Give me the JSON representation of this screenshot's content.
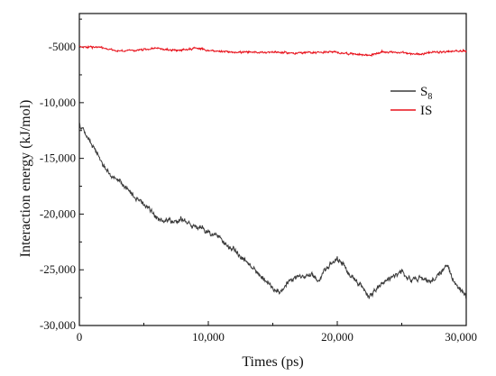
{
  "chart_data": {
    "type": "line",
    "xlabel": "Times (ps)",
    "ylabel": "Interaction energy (kJ/mol)",
    "xlim": [
      0,
      30000
    ],
    "ylim": [
      -30000,
      -2000
    ],
    "x_ticks": [
      0,
      10000,
      20000,
      30000
    ],
    "x_tick_labels": [
      "0",
      "10,000",
      "20,000",
      "30,000"
    ],
    "y_ticks": [
      -30000,
      -25000,
      -20000,
      -15000,
      -10000,
      -5000
    ],
    "y_tick_labels": [
      "-30,000",
      "-25,000",
      "-20,000",
      "-15,000",
      "-10,000",
      "-5000"
    ],
    "grid": false,
    "legend_position": "upper-right",
    "series": [
      {
        "name": "S8",
        "legend_main": "S",
        "legend_sub": "8",
        "color": "#3a3a3a",
        "points": [
          [
            0,
            -11800
          ],
          [
            500,
            -12800
          ],
          [
            1000,
            -13800
          ],
          [
            1500,
            -14800
          ],
          [
            2000,
            -16000
          ],
          [
            2500,
            -16500
          ],
          [
            3000,
            -16900
          ],
          [
            3500,
            -17500
          ],
          [
            4000,
            -18200
          ],
          [
            4500,
            -18600
          ],
          [
            5000,
            -19100
          ],
          [
            5500,
            -19600
          ],
          [
            6000,
            -20300
          ],
          [
            6500,
            -20600
          ],
          [
            7000,
            -20500
          ],
          [
            7500,
            -20700
          ],
          [
            8000,
            -20400
          ],
          [
            8500,
            -20900
          ],
          [
            9000,
            -21100
          ],
          [
            9500,
            -21300
          ],
          [
            10000,
            -21700
          ],
          [
            10500,
            -21900
          ],
          [
            11000,
            -22300
          ],
          [
            11500,
            -22900
          ],
          [
            12000,
            -23200
          ],
          [
            12500,
            -23900
          ],
          [
            13000,
            -24300
          ],
          [
            13500,
            -25000
          ],
          [
            14000,
            -25500
          ],
          [
            14500,
            -26000
          ],
          [
            15000,
            -26800
          ],
          [
            15500,
            -27000
          ],
          [
            16000,
            -26400
          ],
          [
            16500,
            -25900
          ],
          [
            17000,
            -25500
          ],
          [
            17500,
            -25700
          ],
          [
            18000,
            -25300
          ],
          [
            18500,
            -25900
          ],
          [
            19000,
            -25200
          ],
          [
            19500,
            -24500
          ],
          [
            20000,
            -24100
          ],
          [
            20500,
            -24600
          ],
          [
            21000,
            -25400
          ],
          [
            21500,
            -26100
          ],
          [
            22000,
            -26600
          ],
          [
            22500,
            -27400
          ],
          [
            23000,
            -26700
          ],
          [
            23500,
            -26200
          ],
          [
            24000,
            -25900
          ],
          [
            24500,
            -25600
          ],
          [
            25000,
            -25200
          ],
          [
            25500,
            -25800
          ],
          [
            26000,
            -25900
          ],
          [
            26500,
            -25700
          ],
          [
            27000,
            -26000
          ],
          [
            27500,
            -25900
          ],
          [
            28000,
            -25300
          ],
          [
            28500,
            -24600
          ],
          [
            29000,
            -26000
          ],
          [
            29500,
            -26600
          ],
          [
            30000,
            -27300
          ]
        ],
        "noise": 280
      },
      {
        "name": "IS",
        "legend_main": "IS",
        "legend_sub": "",
        "color": "#e8101a",
        "points": [
          [
            0,
            -5000
          ],
          [
            1500,
            -5050
          ],
          [
            3000,
            -5350
          ],
          [
            4500,
            -5300
          ],
          [
            6000,
            -5100
          ],
          [
            7500,
            -5350
          ],
          [
            9000,
            -5100
          ],
          [
            10500,
            -5400
          ],
          [
            12000,
            -5450
          ],
          [
            13500,
            -5500
          ],
          [
            15000,
            -5450
          ],
          [
            16500,
            -5550
          ],
          [
            18000,
            -5500
          ],
          [
            19500,
            -5450
          ],
          [
            21000,
            -5600
          ],
          [
            22500,
            -5750
          ],
          [
            23500,
            -5450
          ],
          [
            24500,
            -5450
          ],
          [
            26000,
            -5650
          ],
          [
            27500,
            -5500
          ],
          [
            29000,
            -5400
          ],
          [
            30000,
            -5350
          ]
        ],
        "noise": 110
      }
    ]
  }
}
